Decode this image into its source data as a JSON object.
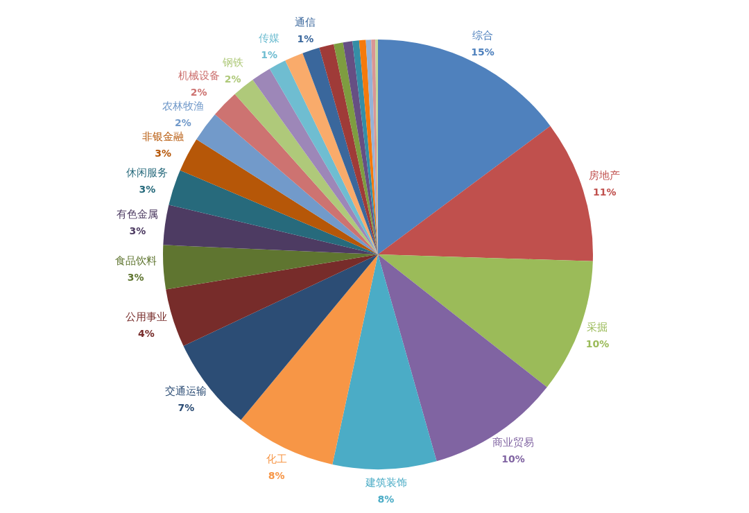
{
  "chart_data": {
    "type": "pie",
    "categories": [
      "综合",
      "房地产",
      "采掘",
      "商业贸易",
      "建筑装饰",
      "化工",
      "交通运输",
      "公用事业",
      "食品饮料",
      "有色金属",
      "休闲服务",
      "非银金融",
      "农林牧渔",
      "机械设备",
      "钢铁",
      null,
      "传媒",
      null,
      "通信",
      null,
      null,
      null,
      null,
      null,
      null,
      null,
      null
    ],
    "values": [
      14.8,
      10.7,
      10.1,
      10.0,
      7.8,
      7.6,
      7.0,
      4.4,
      3.3,
      3.0,
      2.7,
      2.6,
      2.3,
      2.1,
      1.7,
      1.5,
      1.3,
      1.4,
      1.3,
      1.1,
      0.7,
      0.7,
      0.5,
      0.5,
      0.4,
      0.3,
      0.2
    ],
    "colors": [
      "#4f81bd",
      "#c0504d",
      "#9bbb59",
      "#8064a2",
      "#4bacc6",
      "#f79646",
      "#2c4d75",
      "#772c2a",
      "#5f7530",
      "#4d3b62",
      "#276a7c",
      "#b65708",
      "#729aca",
      "#cd7371",
      "#afc97a",
      "#9d87b8",
      "#6fbdd1",
      "#f9ab6b",
      "#3a679c",
      "#9f3b38",
      "#7e9d40",
      "#664f83",
      "#358ea6",
      "#f57a0c",
      "#95b3d7",
      "#d99694",
      "#c3d69b"
    ],
    "value_labels": [
      "15%",
      "11%",
      "10%",
      "10%",
      "8%",
      "8%",
      "7%",
      "4%",
      "3%",
      "3%",
      "3%",
      "3%",
      "2%",
      "2%",
      "2%",
      null,
      "1%",
      null,
      "1%",
      null,
      null,
      null,
      null,
      null,
      null,
      null,
      null
    ]
  }
}
